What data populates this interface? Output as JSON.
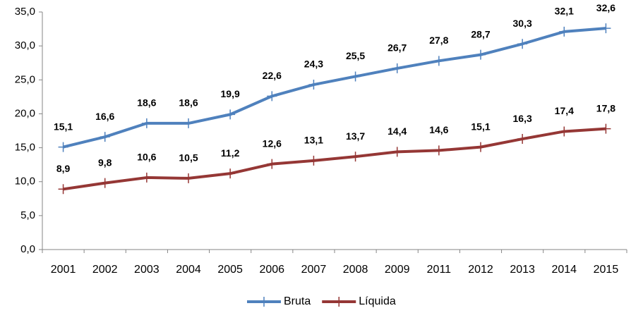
{
  "chart_data": {
    "type": "line",
    "categories": [
      "2001",
      "2002",
      "2003",
      "2004",
      "2005",
      "2006",
      "2007",
      "2008",
      "2009",
      "2011",
      "2012",
      "2013",
      "2014",
      "2015"
    ],
    "series": [
      {
        "name": "Bruta",
        "color": "#4f81bd",
        "values": [
          15.1,
          16.6,
          18.6,
          18.6,
          19.9,
          22.6,
          24.3,
          25.5,
          26.7,
          27.8,
          28.7,
          30.3,
          32.1,
          32.6
        ],
        "value_labels": [
          "15,1",
          "16,6",
          "18,6",
          "18,6",
          "19,9",
          "22,6",
          "24,3",
          "25,5",
          "26,7",
          "27,8",
          "28,7",
          "30,3",
          "32,1",
          "32,6"
        ]
      },
      {
        "name": "Líquida",
        "color": "#953735",
        "values": [
          8.9,
          9.8,
          10.6,
          10.5,
          11.2,
          12.6,
          13.1,
          13.7,
          14.4,
          14.6,
          15.1,
          16.3,
          17.4,
          17.8
        ],
        "value_labels": [
          "8,9",
          "9,8",
          "10,6",
          "10,5",
          "11,2",
          "12,6",
          "13,1",
          "13,7",
          "14,4",
          "14,6",
          "15,1",
          "16,3",
          "17,4",
          "17,8"
        ]
      }
    ],
    "ylim": [
      0,
      35
    ],
    "yticks": [
      {
        "value": 0,
        "label": "0,0"
      },
      {
        "value": 5,
        "label": "5,0"
      },
      {
        "value": 10,
        "label": "10,0"
      },
      {
        "value": 15,
        "label": "15,0"
      },
      {
        "value": 20,
        "label": "20,0"
      },
      {
        "value": 25,
        "label": "25,0"
      },
      {
        "value": 30,
        "label": "30,0"
      },
      {
        "value": 35,
        "label": "35,0"
      }
    ],
    "grid": false,
    "legend": "bottom"
  }
}
